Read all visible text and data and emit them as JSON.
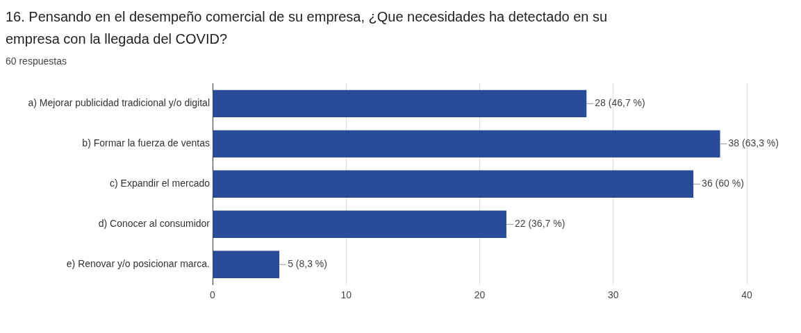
{
  "chart_data": {
    "type": "bar",
    "orientation": "horizontal",
    "title": "16. Pensando en el desempeño comercial de su empresa, ¿Que necesidades ha detectado en su empresa con la llegada del COVID?",
    "subtitle": "60 respuestas",
    "categories": [
      "a) Mejorar publicidad tradicional y/o digital",
      "b) Formar la fuerza de ventas",
      "c) Expandir el mercado",
      "d) Conocer al consumidor",
      "e) Renovar y/o posicionar marca."
    ],
    "values": [
      28,
      38,
      36,
      22,
      5
    ],
    "value_labels": [
      "28 (46,7 %)",
      "38 (63,3 %)",
      "36 (60 %)",
      "22 (36,7 %)",
      "5 (8,3 %)"
    ],
    "color": "#2a4b98",
    "xlim": [
      0,
      40
    ],
    "xticks": [
      0,
      10,
      20,
      30,
      40
    ],
    "grid": "x",
    "legend": false
  }
}
